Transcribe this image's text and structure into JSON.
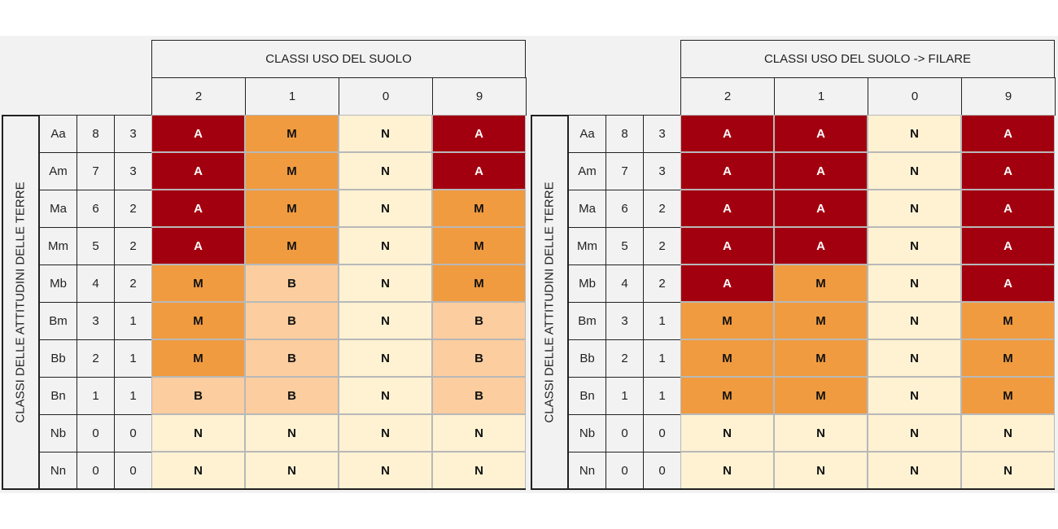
{
  "colors": {
    "A": "#a3000f",
    "M": "#f09b40",
    "B": "#fccd9f",
    "N": "#fef2d3"
  },
  "rows": [
    {
      "code": "Aa",
      "v1": "8",
      "v2": "3"
    },
    {
      "code": "Am",
      "v1": "7",
      "v2": "3"
    },
    {
      "code": "Ma",
      "v1": "6",
      "v2": "2"
    },
    {
      "code": "Mm",
      "v1": "5",
      "v2": "2"
    },
    {
      "code": "Mb",
      "v1": "4",
      "v2": "2"
    },
    {
      "code": "Bm",
      "v1": "3",
      "v2": "1"
    },
    {
      "code": "Bb",
      "v1": "2",
      "v2": "1"
    },
    {
      "code": "Bn",
      "v1": "1",
      "v2": "1"
    },
    {
      "code": "Nb",
      "v1": "0",
      "v2": "0"
    },
    {
      "code": "Nn",
      "v1": "0",
      "v2": "0"
    }
  ],
  "tables": [
    {
      "title": "CLASSI USO DEL SUOLO",
      "row_label": "CLASSI DELLE ATTITUDINI DELLE TERRE",
      "columns": [
        "2",
        "1",
        "0",
        "9"
      ],
      "rows_v2": [
        "3",
        "3",
        "2",
        "2",
        "2",
        "1",
        "1",
        "1",
        "0",
        "0"
      ],
      "cells": [
        [
          "A",
          "M",
          "N",
          "A"
        ],
        [
          "A",
          "M",
          "N",
          "A"
        ],
        [
          "A",
          "M",
          "N",
          "M"
        ],
        [
          "A",
          "M",
          "N",
          "M"
        ],
        [
          "M",
          "B",
          "N",
          "M"
        ],
        [
          "M",
          "B",
          "N",
          "B"
        ],
        [
          "M",
          "B",
          "N",
          "B"
        ],
        [
          "B",
          "B",
          "N",
          "B"
        ],
        [
          "N",
          "N",
          "N",
          "N"
        ],
        [
          "N",
          "N",
          "N",
          "N"
        ]
      ]
    },
    {
      "title": "CLASSI USO DEL SUOLO -> FILARE",
      "row_label": "CLASSI DELLE ATTITUDINI DELLE TERRE",
      "columns": [
        "2",
        "1",
        "0",
        "9"
      ],
      "rows_v2": [
        "3",
        "3",
        "2",
        "2",
        "2",
        "1",
        "1",
        "1",
        "0",
        "0"
      ],
      "cells": [
        [
          "A",
          "A",
          "N",
          "A"
        ],
        [
          "A",
          "A",
          "N",
          "A"
        ],
        [
          "A",
          "A",
          "N",
          "A"
        ],
        [
          "A",
          "A",
          "N",
          "A"
        ],
        [
          "A",
          "M",
          "N",
          "A"
        ],
        [
          "M",
          "M",
          "N",
          "M"
        ],
        [
          "M",
          "M",
          "N",
          "M"
        ],
        [
          "M",
          "M",
          "N",
          "M"
        ],
        [
          "N",
          "N",
          "N",
          "N"
        ],
        [
          "N",
          "N",
          "N",
          "N"
        ]
      ]
    }
  ]
}
